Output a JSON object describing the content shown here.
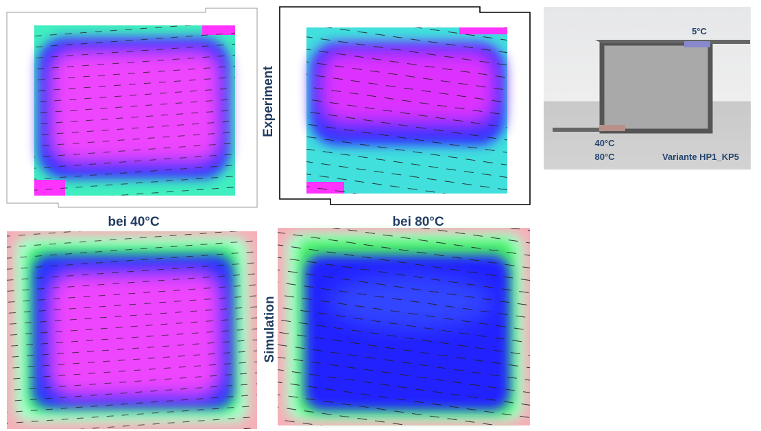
{
  "row_labels": {
    "experiment": "Experiment",
    "simulation": "Simulation"
  },
  "column_labels": {
    "left": "bei 40°C",
    "right": "bei 80°C"
  },
  "schematic": {
    "top_label": "5°C",
    "bottom_label_1": "40°C",
    "bottom_label_2": "80°C",
    "variant": "Variante HP1_KP5"
  }
}
